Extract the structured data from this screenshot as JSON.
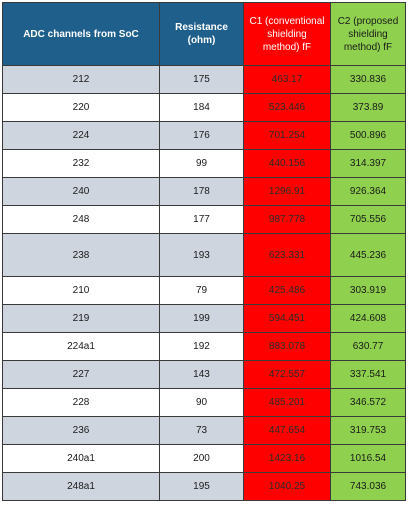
{
  "table": {
    "headers": [
      "ADC channels from SoC",
      "Resistance (ohm)",
      "C1 (conventional shielding method) fF",
      "C2 (proposed shielding method) fF"
    ],
    "rows": [
      [
        "212",
        "175",
        "463.17",
        "330.836"
      ],
      [
        "220",
        "184",
        "523.446",
        "373.89"
      ],
      [
        "224",
        "176",
        "701.254",
        "500.896"
      ],
      [
        "232",
        "99",
        "440.156",
        "314.397"
      ],
      [
        "240",
        "178",
        "1296.91",
        "926.364"
      ],
      [
        "248",
        "177",
        "987.778",
        "705.556"
      ],
      [
        "238",
        "193",
        "623.331",
        "445.236"
      ],
      [
        "210",
        "79",
        "425.486",
        "303.919"
      ],
      [
        "219",
        "199",
        "594.451",
        "424.608"
      ],
      [
        "224a1",
        "192",
        "883.078",
        "630.77"
      ],
      [
        "227",
        "143",
        "472.557",
        "337.541"
      ],
      [
        "228",
        "90",
        "485.201",
        "346.572"
      ],
      [
        "236",
        "73",
        "447.654",
        "319.753"
      ],
      [
        "240a1",
        "200",
        "1423.16",
        "1016.54"
      ],
      [
        "248a1",
        "195",
        "1040.25",
        "743.036"
      ]
    ]
  },
  "colors": {
    "header_blue": "#1f5f8b",
    "conventional_red": "#ff0000",
    "proposed_green": "#8fd14f",
    "row_band": "#cfd5df"
  }
}
